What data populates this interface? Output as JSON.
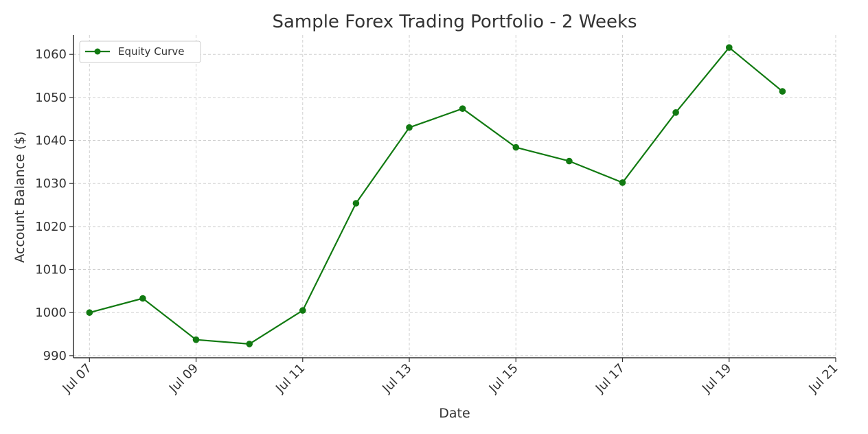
{
  "chart_data": {
    "type": "line",
    "title": "Sample Forex Trading Portfolio - 2 Weeks",
    "xlabel": "Date",
    "ylabel": "Account Balance ($)",
    "x_tick_labels": [
      "Jul 07",
      "Jul 09",
      "Jul 11",
      "Jul 13",
      "Jul 15",
      "Jul 17",
      "Jul 19",
      "Jul 21"
    ],
    "y_ticks": [
      990,
      1000,
      1010,
      1020,
      1030,
      1040,
      1050,
      1060
    ],
    "ylim": [
      989.5,
      1064.5
    ],
    "xlim": [
      "2024-07-06",
      "2024-07-21"
    ],
    "grid": true,
    "grid_style": "dashed",
    "legend_position": "top-left",
    "series": [
      {
        "name": "Equity Curve",
        "color": "#117a11",
        "marker": "circle",
        "x": [
          "2024-07-07",
          "2024-07-08",
          "2024-07-09",
          "2024-07-10",
          "2024-07-11",
          "2024-07-12",
          "2024-07-13",
          "2024-07-14",
          "2024-07-15",
          "2024-07-16",
          "2024-07-17",
          "2024-07-18",
          "2024-07-19",
          "2024-07-20"
        ],
        "values": [
          1000.0,
          1003.3,
          993.7,
          992.7,
          1000.5,
          1025.4,
          1043.0,
          1047.4,
          1038.4,
          1035.2,
          1030.2,
          1046.5,
          1061.6,
          1051.4
        ]
      }
    ]
  }
}
